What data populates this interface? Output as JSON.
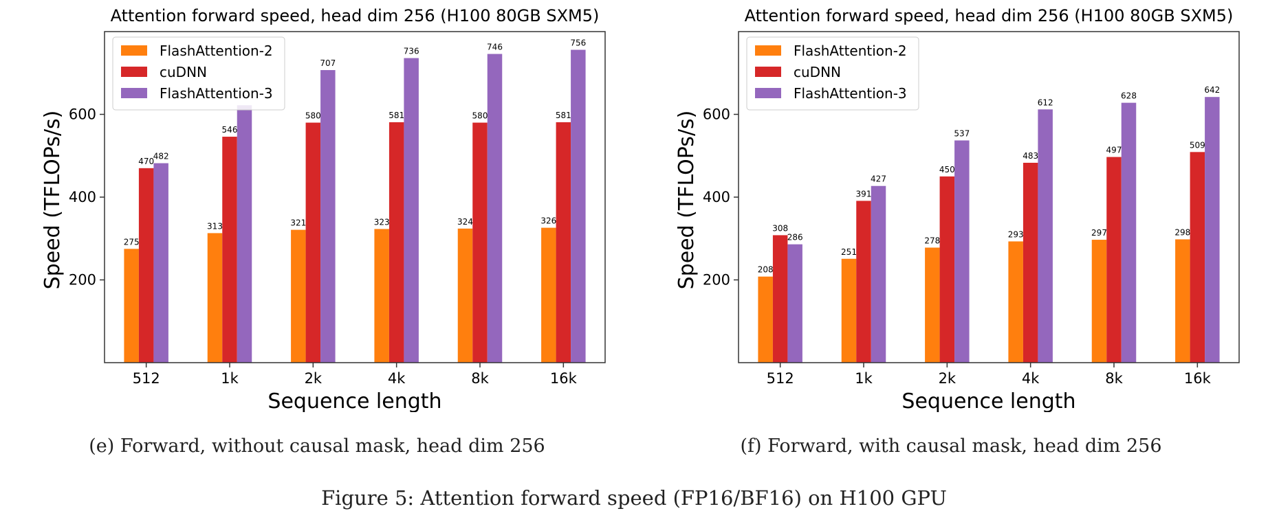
{
  "figure_caption": "Figure 5: Attention forward speed (FP16/BF16) on H100 GPU",
  "chart_data": [
    {
      "type": "bar",
      "title": "Attention forward speed, head dim 256 (H100 80GB SXM5)",
      "caption": "(e) Forward, without causal mask, head dim 256",
      "xlabel": "Sequence length",
      "ylabel": "Speed (TFLOPs/s)",
      "categories": [
        "512",
        "1k",
        "2k",
        "4k",
        "8k",
        "16k"
      ],
      "ylim": [
        0,
        800
      ],
      "yticks": [
        200,
        400,
        600
      ],
      "legend_position": "top-left",
      "grid": false,
      "series": [
        {
          "name": "FlashAttention-2",
          "color": "#ff7f0e",
          "values": [
            275,
            313,
            321,
            323,
            324,
            326
          ],
          "show_labels": true
        },
        {
          "name": "cuDNN",
          "color": "#d62728",
          "values": [
            470,
            546,
            580,
            581,
            580,
            581
          ],
          "show_labels": true
        },
        {
          "name": "FlashAttention-3",
          "color": "#9467bd",
          "values": [
            482,
            622,
            707,
            736,
            746,
            756
          ],
          "show_labels": [
            true,
            false,
            true,
            true,
            true,
            true
          ]
        }
      ]
    },
    {
      "type": "bar",
      "title": "Attention forward speed, head dim 256 (H100 80GB SXM5)",
      "caption": "(f) Forward, with causal mask, head dim 256",
      "xlabel": "Sequence length",
      "ylabel": "Speed (TFLOPs/s)",
      "categories": [
        "512",
        "1k",
        "2k",
        "4k",
        "8k",
        "16k"
      ],
      "ylim": [
        0,
        800
      ],
      "yticks": [
        200,
        400,
        600
      ],
      "legend_position": "top-left",
      "grid": false,
      "series": [
        {
          "name": "FlashAttention-2",
          "color": "#ff7f0e",
          "values": [
            208,
            251,
            278,
            293,
            297,
            298
          ],
          "show_labels": true
        },
        {
          "name": "cuDNN",
          "color": "#d62728",
          "values": [
            308,
            391,
            450,
            483,
            497,
            509
          ],
          "show_labels": true
        },
        {
          "name": "FlashAttention-3",
          "color": "#9467bd",
          "values": [
            286,
            427,
            537,
            612,
            628,
            642
          ],
          "show_labels": true
        }
      ]
    }
  ]
}
